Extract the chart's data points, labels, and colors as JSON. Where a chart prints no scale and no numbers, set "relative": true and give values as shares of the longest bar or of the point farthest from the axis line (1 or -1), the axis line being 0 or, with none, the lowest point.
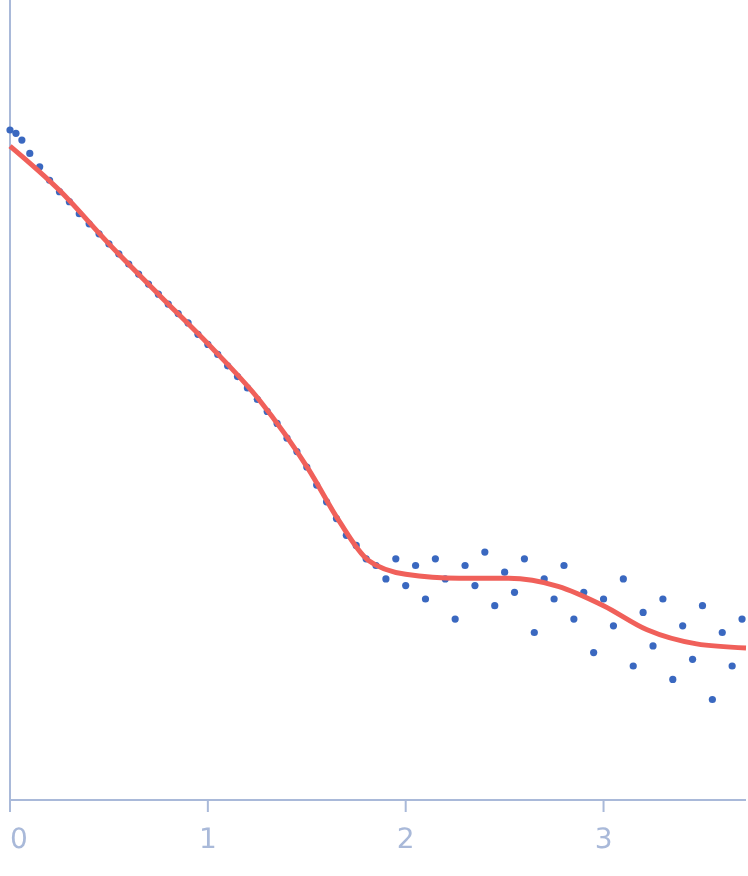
{
  "chart_data": {
    "type": "scatter",
    "relative": true,
    "xlim": [
      0,
      3.72
    ],
    "xticks": [
      0,
      1,
      2,
      3
    ],
    "grid": false,
    "series": [
      {
        "type": "scatter",
        "marker": "circle",
        "color": "#3a68c0",
        "x": [
          0,
          0.03,
          0.06,
          0.1,
          0.15,
          0.2,
          0.25,
          0.3,
          0.35,
          0.4,
          0.45,
          0.5,
          0.55,
          0.6,
          0.65,
          0.7,
          0.75,
          0.8,
          0.85,
          0.9,
          0.95,
          1.0,
          1.05,
          1.1,
          1.15,
          1.2,
          1.25,
          1.3,
          1.35,
          1.4,
          1.45,
          1.5,
          1.55,
          1.6,
          1.65,
          1.7,
          1.75,
          1.8,
          1.85,
          1.9,
          1.95,
          2.0,
          2.05,
          2.1,
          2.15,
          2.2,
          2.25,
          2.3,
          2.35,
          2.4,
          2.45,
          2.5,
          2.55,
          2.6,
          2.65,
          2.7,
          2.75,
          2.8,
          2.85,
          2.9,
          2.95,
          3.0,
          3.05,
          3.1,
          3.15,
          3.2,
          3.25,
          3.3,
          3.35,
          3.4,
          3.45,
          3.5,
          3.55,
          3.6,
          3.65,
          3.7
        ],
        "values": [
          1.0,
          0.995,
          0.985,
          0.965,
          0.945,
          0.925,
          0.908,
          0.893,
          0.875,
          0.86,
          0.845,
          0.83,
          0.815,
          0.8,
          0.785,
          0.77,
          0.755,
          0.74,
          0.726,
          0.712,
          0.695,
          0.68,
          0.665,
          0.648,
          0.632,
          0.615,
          0.598,
          0.58,
          0.562,
          0.54,
          0.52,
          0.497,
          0.47,
          0.445,
          0.42,
          0.395,
          0.38,
          0.36,
          0.35,
          0.33,
          0.36,
          0.32,
          0.35,
          0.3,
          0.36,
          0.33,
          0.27,
          0.35,
          0.32,
          0.37,
          0.29,
          0.34,
          0.31,
          0.36,
          0.25,
          0.33,
          0.3,
          0.35,
          0.27,
          0.31,
          0.22,
          0.3,
          0.26,
          0.33,
          0.2,
          0.28,
          0.23,
          0.3,
          0.18,
          0.26,
          0.21,
          0.29,
          0.15,
          0.25,
          0.2,
          0.27
        ]
      },
      {
        "type": "line",
        "color": "#f0605a",
        "x": [
          0,
          0.25,
          0.5,
          0.76,
          1.01,
          1.26,
          1.51,
          1.66,
          1.81,
          2.0,
          2.27,
          2.52,
          2.77,
          3.0,
          3.22,
          3.47,
          3.72
        ],
        "values": [
          0.976,
          0.91,
          0.83,
          0.752,
          0.678,
          0.597,
          0.493,
          0.418,
          0.358,
          0.337,
          0.331,
          0.331,
          0.319,
          0.29,
          0.254,
          0.233,
          0.227
        ]
      }
    ]
  }
}
